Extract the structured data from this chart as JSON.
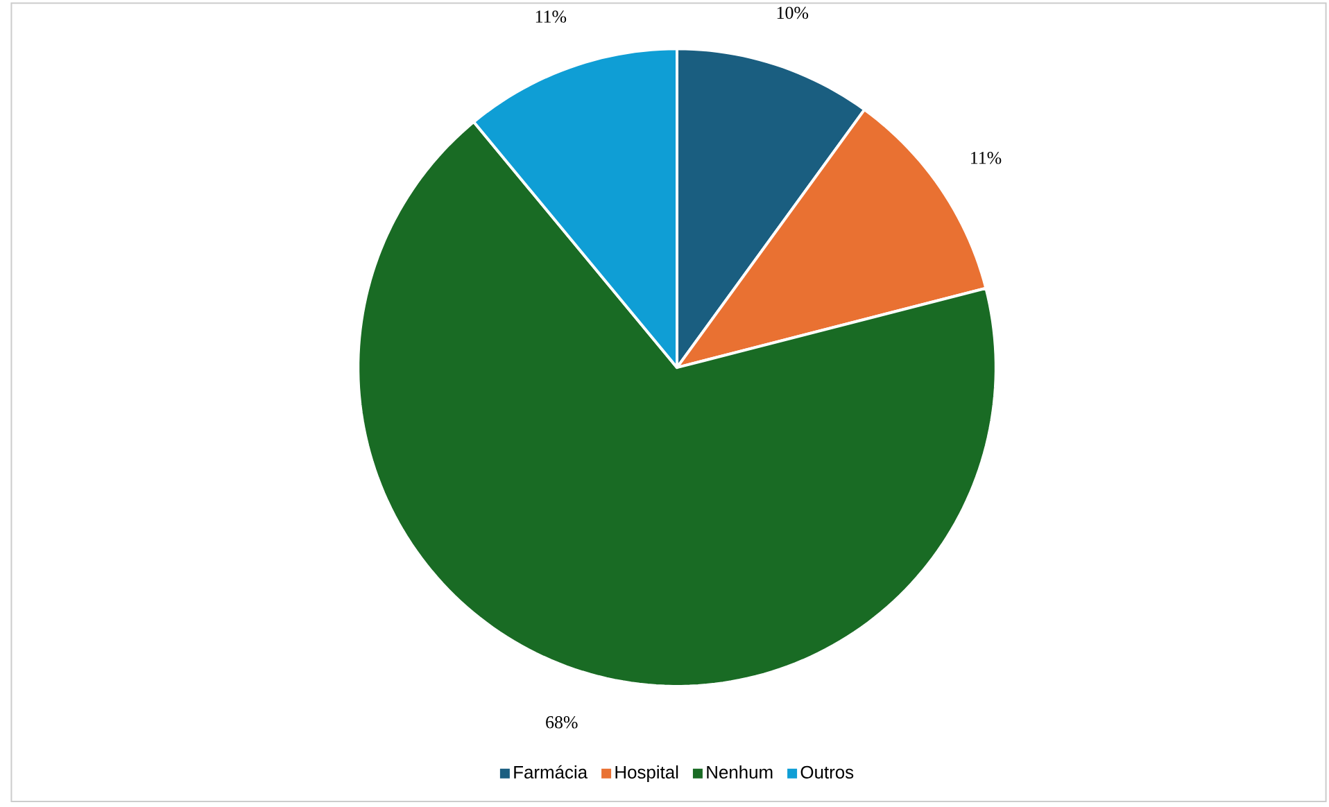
{
  "chart_data": {
    "type": "pie",
    "categories": [
      "Farmácia",
      "Hospital",
      "Nenhum",
      "Outros"
    ],
    "values": [
      10,
      11,
      68,
      11
    ],
    "colors": [
      "#1a5e80",
      "#e97132",
      "#196b24",
      "#0f9ed5"
    ],
    "value_labels": [
      "10%",
      "11%",
      "68%",
      "11%"
    ],
    "legend": "bottom"
  }
}
